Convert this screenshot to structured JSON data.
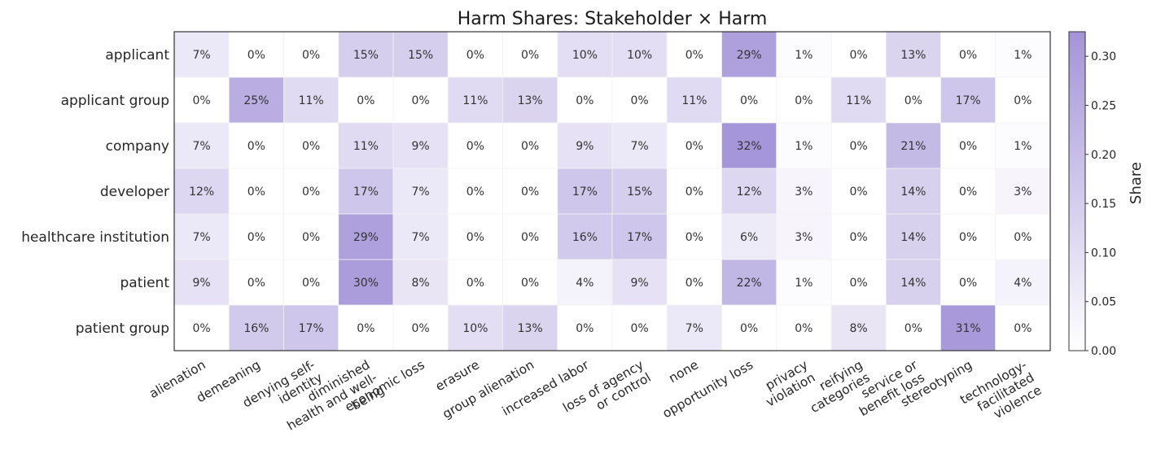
{
  "chart_data": {
    "type": "heatmap",
    "title": "Harm Shares: Stakeholder × Harm",
    "rows": [
      "applicant",
      "applicant group",
      "company",
      "developer",
      "healthcare institution",
      "patient",
      "patient group"
    ],
    "columns": [
      [
        "alienation"
      ],
      [
        "demeaning"
      ],
      [
        "denying self-",
        "identity"
      ],
      [
        "diminished",
        "health and well-",
        "being"
      ],
      [
        "economic loss"
      ],
      [
        "erasure"
      ],
      [
        "group alienation"
      ],
      [
        "increased labor"
      ],
      [
        "loss of agency",
        "or control"
      ],
      [
        "none"
      ],
      [
        "opportunity loss"
      ],
      [
        "privacy",
        "violation"
      ],
      [
        "reifying",
        "categories"
      ],
      [
        "service or",
        "benefit loss"
      ],
      [
        "stereotyping"
      ],
      [
        "technology-",
        "facilitated",
        "violence"
      ]
    ],
    "values": [
      [
        0.07,
        0.0,
        0.0,
        0.15,
        0.15,
        0.0,
        0.0,
        0.1,
        0.1,
        0.0,
        0.29,
        0.01,
        0.0,
        0.13,
        0.0,
        0.01
      ],
      [
        0.0,
        0.25,
        0.11,
        0.0,
        0.0,
        0.11,
        0.13,
        0.0,
        0.0,
        0.11,
        0.0,
        0.0,
        0.11,
        0.0,
        0.17,
        0.0
      ],
      [
        0.07,
        0.0,
        0.0,
        0.11,
        0.09,
        0.0,
        0.0,
        0.09,
        0.07,
        0.0,
        0.32,
        0.01,
        0.0,
        0.21,
        0.0,
        0.01
      ],
      [
        0.12,
        0.0,
        0.0,
        0.17,
        0.07,
        0.0,
        0.0,
        0.17,
        0.15,
        0.0,
        0.12,
        0.03,
        0.0,
        0.14,
        0.0,
        0.03
      ],
      [
        0.07,
        0.0,
        0.0,
        0.29,
        0.07,
        0.0,
        0.0,
        0.16,
        0.17,
        0.0,
        0.06,
        0.03,
        0.0,
        0.14,
        0.0,
        0.0
      ],
      [
        0.09,
        0.0,
        0.0,
        0.3,
        0.08,
        0.0,
        0.0,
        0.04,
        0.09,
        0.0,
        0.22,
        0.01,
        0.0,
        0.14,
        0.0,
        0.04
      ],
      [
        0.0,
        0.16,
        0.17,
        0.0,
        0.0,
        0.1,
        0.13,
        0.0,
        0.0,
        0.07,
        0.0,
        0.0,
        0.08,
        0.0,
        0.31,
        0.0
      ]
    ],
    "labels": [
      [
        "7%",
        "0%",
        "0%",
        "15%",
        "15%",
        "0%",
        "0%",
        "10%",
        "10%",
        "0%",
        "29%",
        "1%",
        "0%",
        "13%",
        "0%",
        "1%"
      ],
      [
        "0%",
        "25%",
        "11%",
        "0%",
        "0%",
        "11%",
        "13%",
        "0%",
        "0%",
        "11%",
        "0%",
        "0%",
        "11%",
        "0%",
        "17%",
        "0%"
      ],
      [
        "7%",
        "0%",
        "0%",
        "11%",
        "9%",
        "0%",
        "0%",
        "9%",
        "7%",
        "0%",
        "32%",
        "1%",
        "0%",
        "21%",
        "0%",
        "1%"
      ],
      [
        "12%",
        "0%",
        "0%",
        "17%",
        "7%",
        "0%",
        "0%",
        "17%",
        "15%",
        "0%",
        "12%",
        "3%",
        "0%",
        "14%",
        "0%",
        "3%"
      ],
      [
        "7%",
        "0%",
        "0%",
        "29%",
        "7%",
        "0%",
        "0%",
        "16%",
        "17%",
        "0%",
        "6%",
        "3%",
        "0%",
        "14%",
        "0%",
        "0%"
      ],
      [
        "9%",
        "0%",
        "0%",
        "30%",
        "8%",
        "0%",
        "0%",
        "4%",
        "9%",
        "0%",
        "22%",
        "1%",
        "0%",
        "14%",
        "0%",
        "4%"
      ],
      [
        "0%",
        "16%",
        "17%",
        "0%",
        "0%",
        "10%",
        "13%",
        "0%",
        "0%",
        "7%",
        "0%",
        "0%",
        "8%",
        "0%",
        "31%",
        "0%"
      ]
    ],
    "colorbar": {
      "label": "Share",
      "range": [
        0,
        0.325
      ],
      "ticks": [
        0.0,
        0.05,
        0.1,
        0.15,
        0.2,
        0.25,
        0.3
      ],
      "tick_labels": [
        "0.00",
        "0.05",
        "0.10",
        "0.15",
        "0.20",
        "0.25",
        "0.30"
      ],
      "color_low": "#ffffff",
      "color_high": "#a494d8"
    }
  }
}
